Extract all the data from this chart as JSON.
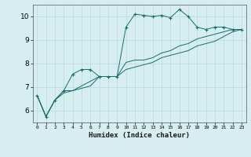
{
  "xlabel": "Humidex (Indice chaleur)",
  "bg_color": "#d6eef0",
  "grid_color": "#b8d8da",
  "line_color": "#1a6b6b",
  "marker": "+",
  "xlim": [
    -0.5,
    23.5
  ],
  "ylim": [
    5.5,
    10.5
  ],
  "xticks": [
    0,
    1,
    2,
    3,
    4,
    5,
    6,
    7,
    8,
    9,
    10,
    11,
    12,
    13,
    14,
    15,
    16,
    17,
    18,
    19,
    20,
    21,
    22,
    23
  ],
  "yticks": [
    6,
    7,
    8,
    9,
    10
  ],
  "series": [
    [
      6.65,
      5.75,
      6.45,
      6.85,
      7.55,
      7.75,
      7.75,
      7.45,
      7.45,
      7.45,
      9.55,
      10.1,
      10.05,
      10.0,
      10.05,
      9.95,
      10.3,
      10.0,
      9.55,
      9.45,
      9.55,
      9.55,
      9.45,
      9.45
    ],
    [
      6.65,
      5.75,
      6.45,
      6.85,
      6.85,
      7.05,
      7.25,
      7.45,
      7.45,
      7.45,
      8.05,
      8.15,
      8.15,
      8.25,
      8.45,
      8.55,
      8.75,
      8.85,
      9.05,
      9.15,
      9.25,
      9.35,
      9.45,
      9.45
    ],
    [
      6.65,
      5.75,
      6.45,
      6.75,
      6.85,
      6.95,
      7.05,
      7.45,
      7.45,
      7.45,
      7.75,
      7.85,
      7.95,
      8.05,
      8.25,
      8.35,
      8.45,
      8.55,
      8.75,
      8.85,
      8.95,
      9.15,
      9.35,
      9.45
    ]
  ]
}
